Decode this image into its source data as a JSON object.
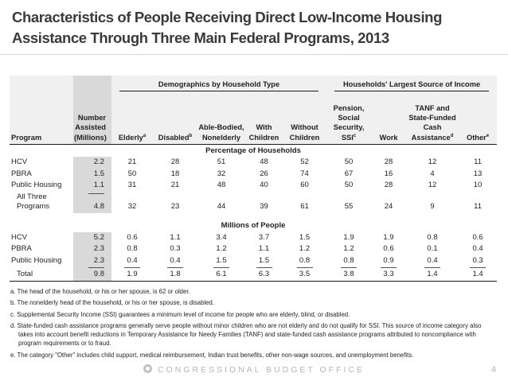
{
  "slide": {
    "title": "Characteristics of People Receiving Direct Low-Income Housing Assistance Through Three Main Federal Programs, 2013",
    "footer_brand": "CONGRESSIONAL BUDGET OFFICE",
    "page_number": "4"
  },
  "colors": {
    "highlight_column": "#d9d9d9",
    "header_band": "#f0f0f0",
    "title_text": "#3a3a3a",
    "footer_text": "#b5b5b5"
  },
  "table": {
    "group_headers": [
      {
        "label": "Demographics by Household Type"
      },
      {
        "label": "Households' Largest Source of Income"
      }
    ],
    "columns": [
      {
        "label": "Program",
        "sup": ""
      },
      {
        "label": "Number Assisted (Millions)",
        "sup": ""
      },
      {
        "label": "Elderly",
        "sup": "a"
      },
      {
        "label": "Disabled",
        "sup": "b"
      },
      {
        "label": "Able-Bodied, Nonelderly",
        "sup": ""
      },
      {
        "label": "With Children",
        "sup": ""
      },
      {
        "label": "Without Children",
        "sup": ""
      },
      {
        "label": "Pension, Social Security, SSI",
        "sup": "c"
      },
      {
        "label": "Work",
        "sup": ""
      },
      {
        "label": "TANF and State-Funded Cash Assistance",
        "sup": "d"
      },
      {
        "label": "Other",
        "sup": "e"
      }
    ],
    "sections": [
      {
        "id": "percentage",
        "title": "Percentage of Households",
        "gap": false,
        "rows": [
          {
            "program": "HCV",
            "values": [
              "2.2",
              "21",
              "28",
              "51",
              "48",
              "52",
              "50",
              "28",
              "12",
              "11"
            ]
          },
          {
            "program": "PBRA",
            "values": [
              "1.5",
              "50",
              "18",
              "32",
              "26",
              "74",
              "67",
              "16",
              "4",
              "13"
            ]
          },
          {
            "program": "Public Housing",
            "values": [
              "1.1",
              "31",
              "21",
              "48",
              "40",
              "60",
              "50",
              "28",
              "12",
              "10"
            ]
          },
          {
            "program": "All Three Programs",
            "indent": true,
            "sumline": "first",
            "values": [
              "4.8",
              "32",
              "23",
              "44",
              "39",
              "61",
              "55",
              "24",
              "9",
              "11"
            ]
          }
        ]
      },
      {
        "id": "millions",
        "title": "Millions of People",
        "gap": true,
        "rows": [
          {
            "program": "HCV",
            "values": [
              "5.2",
              "0.6",
              "1.1",
              "3.4",
              "3.7",
              "1.5",
              "1.9",
              "1.9",
              "0.8",
              "0.6"
            ]
          },
          {
            "program": "PBRA",
            "values": [
              "2.3",
              "0.8",
              "0.3",
              "1.2",
              "1.1",
              "1.2",
              "1.2",
              "0.6",
              "0.1",
              "0.4"
            ]
          },
          {
            "program": "Public Housing",
            "values": [
              "2.3",
              "0.4",
              "0.4",
              "1.5",
              "1.5",
              "0.8",
              "0.8",
              "0.9",
              "0.4",
              "0.3"
            ]
          },
          {
            "program": "Total",
            "indent": true,
            "sumline": "all",
            "cls": "total-row",
            "values": [
              "9.8",
              "1.9",
              "1.8",
              "6.1",
              "6.3",
              "3.5",
              "3.8",
              "3.3",
              "1.4",
              "1.4"
            ]
          }
        ]
      }
    ],
    "footnotes": [
      "a. The head of the household, or his or her spouse, is 62 or older.",
      "b. The nonelderly head of the household, or his or her spouse, is disabled.",
      "c. Supplemental Security Income (SSI) guarantees a minimum level of income for people who are elderly, blind, or disabled.",
      "d. State-funded cash assistance programs generally serve people without minor children who are not elderly and do not qualify for SSI. This source of income category also takes into account benefit reductions in Temporary Assistance for Needy Families (TANF) and state-funded cash assistance programs attributed to noncompliance with program requirements or to fraud.",
      "e. The category \"Other\" includes child support, medical reimbursement, Indian trust benefits, other non-wage sources, and unemployment benefits."
    ]
  }
}
